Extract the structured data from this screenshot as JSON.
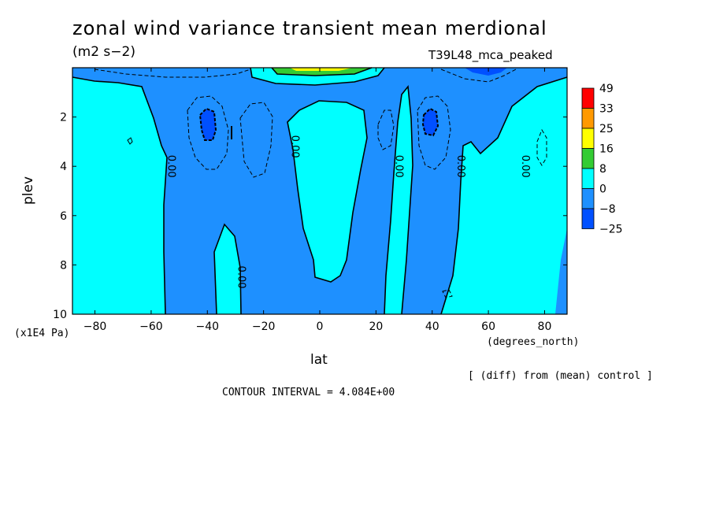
{
  "chart_data": {
    "type": "contour",
    "title": "zonal wind variance transient mean merdional",
    "units": "(m2 s−2)",
    "run_label": "T39L48_mca_peaked",
    "xlabel": "lat",
    "x_units": "(degrees_north)",
    "ylabel": "plev",
    "y_units": "(x1E4 Pa)",
    "xlim": [
      -88,
      88
    ],
    "ylim": [
      10,
      0
    ],
    "x_ticks": [
      -80,
      -60,
      -40,
      -20,
      0,
      20,
      40,
      60,
      80
    ],
    "x_tick_labels": [
      "−80",
      "−60",
      "−40",
      "−20",
      "0",
      "20",
      "40",
      "60",
      "80"
    ],
    "y_ticks": [
      2,
      4,
      6,
      8,
      10
    ],
    "y_tick_labels": [
      "2",
      "4",
      "6",
      "8",
      "10"
    ],
    "colorbar": {
      "levels": [
        "49",
        "33",
        "25",
        "16",
        "8",
        "0",
        "−8",
        "−25"
      ],
      "colors": [
        "#ff0000",
        "#ff9900",
        "#ffff00",
        "#33cc33",
        "#00ffff",
        "#1e90ff",
        "#0050ff"
      ]
    },
    "contour_labels": [
      {
        "text": "0.00",
        "lat": -54,
        "plev": 4.0
      },
      {
        "text": "0.00",
        "lat": -10,
        "plev": 3.2
      },
      {
        "text": "0.00",
        "lat": -29,
        "plev": 8.5
      },
      {
        "text": "0.00",
        "lat": 27,
        "plev": 4.0
      },
      {
        "text": "0.00",
        "lat": 49,
        "plev": 4.0
      },
      {
        "text": "0.00",
        "lat": 72,
        "plev": 4.0
      }
    ],
    "contour_interval_text": "CONTOUR INTERVAL = 4.084E+00",
    "footnote": "[ (diff) from (mean) control ]"
  }
}
